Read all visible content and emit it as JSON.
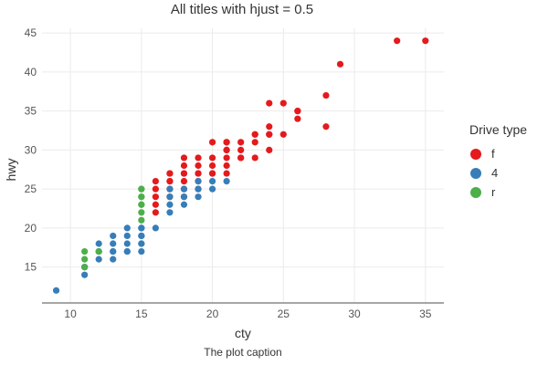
{
  "chart_data": {
    "type": "scatter",
    "title": "All titles with hjust = 0.5",
    "xlabel": "cty",
    "ylabel": "hwy",
    "caption": "The plot caption",
    "xlim": [
      8.0,
      36.3
    ],
    "ylim": [
      10.4,
      45.6
    ],
    "xticks": [
      10,
      15,
      20,
      25,
      30,
      35
    ],
    "yticks": [
      15,
      20,
      25,
      30,
      35,
      40,
      45
    ],
    "grid": true,
    "legend": {
      "title": "Drive type",
      "placement": "right",
      "entries": [
        {
          "label": "f",
          "color": "#e41a1c"
        },
        {
          "label": "4",
          "color": "#377eb8"
        },
        {
          "label": "r",
          "color": "#4daf4a"
        }
      ]
    },
    "series": [
      {
        "name": "f",
        "color": "#e41a1c",
        "x": [
          35,
          33,
          29,
          28,
          28,
          26,
          26,
          26,
          25,
          25,
          24,
          24,
          24,
          24,
          24,
          23,
          23,
          23,
          23,
          22,
          22,
          22,
          22,
          21,
          21,
          21,
          21,
          21,
          21,
          21,
          20,
          20,
          20,
          20,
          20,
          19,
          19,
          19,
          19,
          19,
          19,
          18,
          18,
          18,
          18,
          18,
          18,
          18,
          17,
          17,
          17,
          17,
          17,
          17,
          16,
          16,
          16,
          16,
          16
        ],
        "y": [
          44,
          44,
          41,
          37,
          33,
          35,
          35,
          34,
          36,
          32,
          36,
          33,
          32,
          30,
          32,
          32,
          31,
          29,
          32,
          31,
          30,
          29,
          29,
          31,
          30,
          29,
          28,
          27,
          31,
          30,
          31,
          29,
          28,
          27,
          27,
          29,
          28,
          27,
          26,
          25,
          27,
          29,
          28,
          27,
          26,
          25,
          24,
          27,
          27,
          26,
          25,
          24,
          27,
          26,
          26,
          25,
          24,
          23,
          22
        ]
      },
      {
        "name": "4",
        "color": "#377eb8",
        "x": [
          21,
          20,
          20,
          19,
          19,
          19,
          18,
          18,
          18,
          17,
          17,
          17,
          17,
          16,
          15,
          15,
          15,
          15,
          15,
          15,
          15,
          14,
          14,
          14,
          14,
          14,
          13,
          13,
          13,
          13,
          13,
          12,
          12,
          12,
          12,
          11,
          11,
          11,
          9
        ],
        "y": [
          26,
          26,
          25,
          26,
          25,
          24,
          25,
          24,
          23,
          25,
          24,
          23,
          22,
          20,
          20,
          19,
          18,
          17,
          18,
          19,
          20,
          20,
          19,
          18,
          17,
          17,
          19,
          18,
          17,
          16,
          17,
          18,
          17,
          16,
          17,
          15,
          14,
          15,
          12
        ]
      },
      {
        "name": "r",
        "color": "#4daf4a",
        "x": [
          15,
          15,
          15,
          15,
          15,
          15,
          15,
          15,
          12,
          11,
          11,
          11
        ],
        "y": [
          25,
          24,
          23,
          22,
          21,
          25,
          24,
          23,
          17,
          17,
          16,
          15
        ]
      }
    ]
  }
}
